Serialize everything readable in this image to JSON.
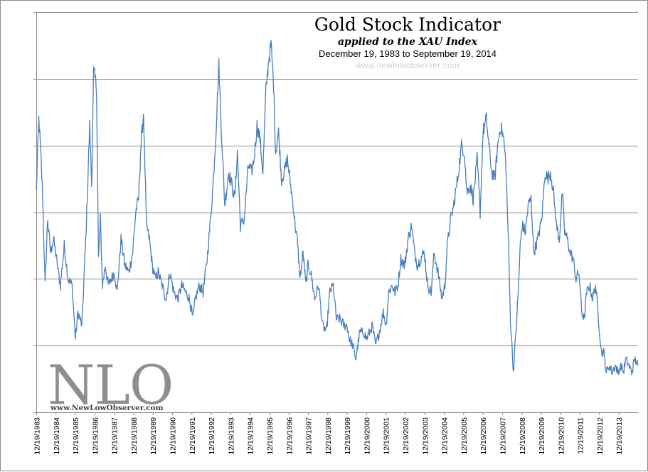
{
  "chart_data": {
    "type": "line",
    "title": "Gold Stock Indicator",
    "subtitle": "applied to the XAU Index",
    "date_range": "December 19, 1983  to September 19, 2014",
    "watermark_url": "www.newlowobserver.com",
    "logo": {
      "text": "NLO",
      "url": "www.NewLowObserver.com"
    },
    "x_tick_labels": [
      "12/19/1983",
      "12/19/1984",
      "12/19/1985",
      "12/19/1986",
      "12/19/1987",
      "12/19/1988",
      "12/19/1989",
      "12/19/1990",
      "12/19/1991",
      "12/19/1992",
      "12/19/1993",
      "12/19/1994",
      "12/19/1995",
      "12/19/1996",
      "12/19/1997",
      "12/19/1998",
      "12/19/1999",
      "12/19/2000",
      "12/19/2001",
      "12/19/2002",
      "12/19/2003",
      "12/19/2004",
      "12/19/2005",
      "12/19/2006",
      "12/19/2007",
      "12/19/2008",
      "12/19/2009",
      "12/19/2010",
      "12/19/2011",
      "12/19/2012",
      "12/19/2013"
    ],
    "xlim": [
      1983.97,
      2014.72
    ],
    "ylim": [
      0,
      6
    ],
    "y_gridlines": [
      1,
      2,
      3,
      4,
      5,
      6
    ],
    "y_tick_labels_visible": false,
    "series": [
      {
        "name": "Gold Stock Indicator",
        "color": "#4a7ebb",
        "x": [
          1983.97,
          1984.1,
          1984.2,
          1984.3,
          1984.42,
          1984.55,
          1984.7,
          1984.85,
          1985.0,
          1985.2,
          1985.4,
          1985.6,
          1985.8,
          1985.97,
          1986.1,
          1986.3,
          1986.5,
          1986.7,
          1986.8,
          1986.9,
          1987.05,
          1987.15,
          1987.25,
          1987.35,
          1987.5,
          1987.65,
          1987.8,
          1987.97,
          1988.1,
          1988.3,
          1988.5,
          1988.7,
          1988.9,
          1989.05,
          1989.2,
          1989.3,
          1989.45,
          1989.6,
          1989.75,
          1989.9,
          1990.05,
          1990.2,
          1990.4,
          1990.6,
          1990.8,
          1991.0,
          1991.2,
          1991.4,
          1991.6,
          1991.8,
          1991.97,
          1992.1,
          1992.3,
          1992.5,
          1992.7,
          1992.85,
          1993.0,
          1993.15,
          1993.3,
          1993.45,
          1993.6,
          1993.8,
          1993.97,
          1994.1,
          1994.25,
          1994.4,
          1994.6,
          1994.8,
          1994.97,
          1995.1,
          1995.25,
          1995.4,
          1995.55,
          1995.7,
          1995.85,
          1995.97,
          1996.1,
          1996.2,
          1996.35,
          1996.5,
          1996.65,
          1996.8,
          1996.97,
          1997.1,
          1997.2,
          1997.3,
          1997.45,
          1997.6,
          1997.75,
          1997.85,
          1998.0,
          1998.2,
          1998.4,
          1998.6,
          1998.8,
          1998.97,
          1999.15,
          1999.3,
          1999.5,
          1999.7,
          1999.85,
          1999.97,
          2000.15,
          2000.3,
          2000.5,
          2000.7,
          2000.85,
          2001.0,
          2001.15,
          2001.3,
          2001.5,
          2001.7,
          2001.85,
          2001.97,
          2002.15,
          2002.3,
          2002.45,
          2002.6,
          2002.8,
          2002.97,
          2003.15,
          2003.3,
          2003.45,
          2003.6,
          2003.8,
          2003.97,
          2004.15,
          2004.3,
          2004.5,
          2004.7,
          2004.85,
          2004.97,
          2005.15,
          2005.3,
          2005.5,
          2005.7,
          2005.85,
          2005.97,
          2006.15,
          2006.3,
          2006.5,
          2006.65,
          2006.8,
          2006.97,
          2007.1,
          2007.25,
          2007.4,
          2007.55,
          2007.7,
          2007.85,
          2007.97,
          2008.1,
          2008.2,
          2008.35,
          2008.5,
          2008.6,
          2008.7,
          2008.8,
          2008.97,
          2009.1,
          2009.25,
          2009.4,
          2009.6,
          2009.8,
          2009.97,
          2010.1,
          2010.25,
          2010.4,
          2010.55,
          2010.7,
          2010.85,
          2010.97,
          2011.1,
          2011.25,
          2011.4,
          2011.55,
          2011.7,
          2011.85,
          2011.97,
          2012.1,
          2012.25,
          2012.4,
          2012.55,
          2012.7,
          2012.85,
          2012.97,
          2013.1,
          2013.25,
          2013.4,
          2013.55,
          2013.7,
          2013.85,
          2013.97,
          2014.1,
          2014.25,
          2014.4,
          2014.55,
          2014.72
        ],
        "y": [
          3.3,
          4.4,
          3.9,
          3.2,
          1.9,
          2.9,
          2.4,
          2.6,
          2.3,
          1.9,
          2.5,
          2.0,
          1.9,
          1.1,
          1.5,
          1.3,
          2.6,
          4.3,
          3.4,
          5.1,
          4.9,
          2.3,
          2.9,
          1.9,
          2.2,
          1.9,
          2.0,
          2.1,
          1.8,
          2.6,
          2.2,
          2.1,
          2.4,
          3.0,
          3.2,
          3.9,
          4.5,
          2.8,
          2.6,
          2.2,
          2.0,
          2.1,
          1.9,
          1.7,
          2.1,
          1.8,
          1.7,
          1.9,
          1.8,
          1.7,
          1.4,
          1.7,
          1.9,
          1.8,
          2.3,
          2.8,
          3.4,
          4.2,
          5.2,
          4.1,
          3.1,
          3.6,
          3.4,
          3.2,
          3.9,
          2.8,
          2.9,
          3.7,
          3.6,
          3.8,
          4.3,
          4.1,
          3.6,
          4.8,
          5.3,
          5.5,
          4.9,
          3.9,
          4.2,
          3.5,
          3.6,
          3.8,
          3.4,
          3.1,
          2.8,
          2.6,
          2.0,
          2.4,
          1.9,
          2.2,
          2.1,
          1.7,
          1.9,
          1.3,
          1.2,
          1.8,
          1.9,
          1.4,
          1.4,
          1.3,
          1.3,
          1.1,
          1.0,
          0.8,
          1.2,
          1.2,
          1.1,
          1.2,
          1.3,
          1.0,
          1.2,
          1.5,
          1.3,
          1.8,
          1.9,
          1.8,
          1.9,
          2.3,
          2.2,
          2.6,
          2.8,
          2.4,
          2.2,
          2.3,
          2.4,
          1.9,
          1.8,
          2.4,
          2.1,
          1.7,
          1.9,
          2.5,
          2.9,
          3.1,
          3.5,
          4.0,
          3.9,
          3.3,
          3.4,
          3.2,
          3.8,
          3.0,
          4.2,
          4.4,
          4.0,
          3.6,
          3.5,
          4.0,
          4.3,
          4.1,
          3.7,
          2.5,
          1.4,
          0.6,
          1.3,
          1.8,
          2.5,
          2.8,
          2.7,
          3.1,
          3.2,
          2.4,
          2.6,
          2.9,
          3.6,
          3.5,
          3.6,
          3.3,
          2.8,
          2.6,
          3.3,
          2.7,
          2.6,
          2.4,
          2.3,
          2.0,
          2.1,
          1.5,
          1.4,
          1.8,
          1.9,
          1.7,
          1.9,
          1.4,
          0.9,
          0.9,
          0.6,
          0.7,
          0.6,
          0.7,
          0.6,
          0.7,
          0.6,
          0.8,
          0.7,
          0.6,
          0.8,
          0.7
        ]
      }
    ]
  }
}
